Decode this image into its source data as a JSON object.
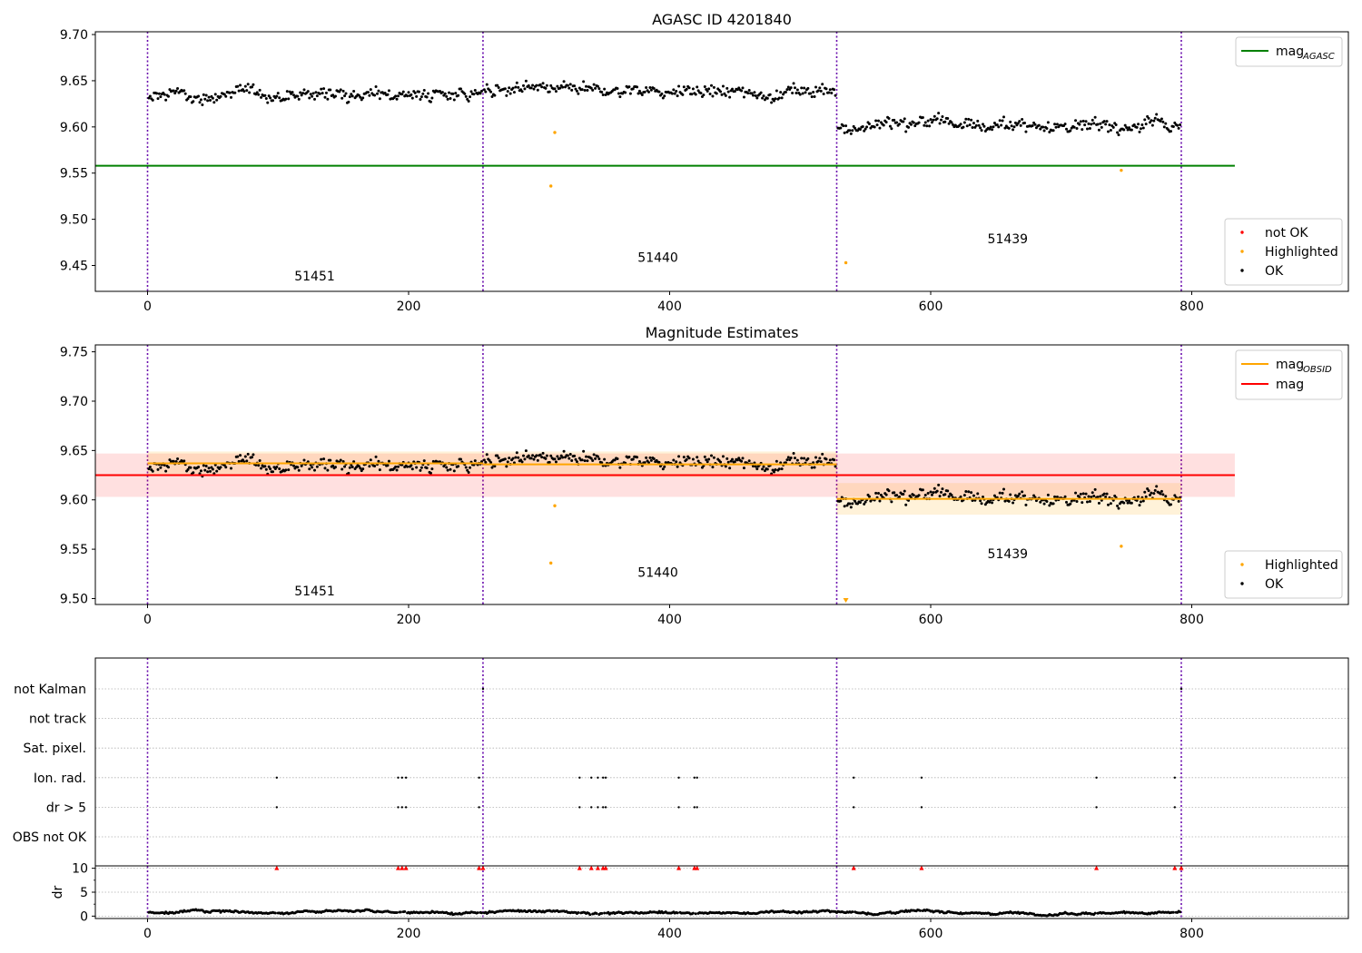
{
  "chart_data": [
    {
      "type": "scatter",
      "title": "AGASC ID 4201840",
      "xlabel": "",
      "ylabel": "",
      "xlim": [
        -40,
        920
      ],
      "ylim": [
        9.422,
        9.703
      ],
      "xticks": [
        0,
        200,
        400,
        600,
        800
      ],
      "yticks": [
        9.45,
        9.5,
        9.55,
        9.6,
        9.65,
        9.7
      ],
      "ytick_labels": [
        "9.45",
        "9.50",
        "9.55",
        "9.60",
        "9.65",
        "9.70"
      ],
      "obs_boundaries": [
        0,
        257,
        528,
        792
      ],
      "obs_labels": [
        {
          "text": "51451",
          "x": 128,
          "y": 9.434
        },
        {
          "text": "51440",
          "x": 391,
          "y": 9.454
        },
        {
          "text": "51439",
          "x": 659,
          "y": 9.474
        }
      ],
      "legend": {
        "position": "top-right",
        "entries": [
          {
            "label": "mag",
            "subscript": "AGASC",
            "color": "#008000"
          }
        ]
      },
      "legend2": {
        "position": "bottom-right",
        "entries": [
          {
            "label": "not OK",
            "color": "#ff0000"
          },
          {
            "label": "Highlighted",
            "color": "#ffa500"
          },
          {
            "label": "OK",
            "color": "#000000"
          }
        ]
      },
      "lines": [
        {
          "name": "mag_AGASC",
          "y": 9.558,
          "x": [
            -40,
            833
          ],
          "color": "#008000"
        }
      ],
      "series": [
        {
          "name": "OK",
          "color": "#000000",
          "segments": [
            {
              "x0": 0,
              "x1": 257,
              "base": 9.636,
              "amp": 0.013
            },
            {
              "x0": 257,
              "x1": 528,
              "base": 9.638,
              "amp": 0.013
            },
            {
              "x0": 528,
              "x1": 792,
              "base": 9.602,
              "amp": 0.013
            }
          ]
        },
        {
          "name": "Highlighted",
          "color": "#ffa500",
          "points": [
            [
              309,
              9.536
            ],
            [
              312,
              9.594
            ],
            [
              535,
              9.453
            ],
            [
              746,
              9.553
            ]
          ]
        }
      ]
    },
    {
      "type": "scatter",
      "title": "Magnitude Estimates",
      "xlabel": "",
      "ylabel": "",
      "xlim": [
        -40,
        920
      ],
      "ylim": [
        9.494,
        9.757
      ],
      "xticks": [
        0,
        200,
        400,
        600,
        800
      ],
      "yticks": [
        9.5,
        9.55,
        9.6,
        9.65,
        9.7,
        9.75
      ],
      "ytick_labels": [
        "9.50",
        "9.55",
        "9.60",
        "9.65",
        "9.70",
        "9.75"
      ],
      "obs_boundaries": [
        0,
        257,
        528,
        792
      ],
      "obs_labels": [
        {
          "text": "51451",
          "x": 128,
          "y": 9.503
        },
        {
          "text": "51440",
          "x": 391,
          "y": 9.522
        },
        {
          "text": "51439",
          "x": 659,
          "y": 9.541
        }
      ],
      "legend": {
        "position": "top-right",
        "entries": [
          {
            "label": "mag",
            "subscript": "OBSID",
            "color": "#ffa500"
          },
          {
            "label": "mag",
            "subscript": "",
            "color": "#ff0000"
          }
        ]
      },
      "legend2": {
        "position": "bottom-right",
        "entries": [
          {
            "label": "Highlighted",
            "color": "#ffa500"
          },
          {
            "label": "OK",
            "color": "#000000"
          }
        ]
      },
      "lines": [
        {
          "name": "mag",
          "y": 9.625,
          "x": [
            -40,
            833
          ],
          "band": [
            9.603,
            9.647
          ],
          "color": "#ff0000"
        },
        {
          "name": "mag_OBSID 51451",
          "y": 9.637,
          "x": [
            0,
            257
          ],
          "band": [
            9.626,
            9.649
          ],
          "color": "#ffa500"
        },
        {
          "name": "mag_OBSID 51440",
          "y": 9.636,
          "x": [
            257,
            528
          ],
          "band": [
            9.623,
            9.649
          ],
          "color": "#ffa500"
        },
        {
          "name": "mag_OBSID 51439",
          "y": 9.601,
          "x": [
            528,
            792
          ],
          "band": [
            9.585,
            9.617
          ],
          "color": "#ffa500"
        }
      ],
      "series": [
        {
          "name": "OK",
          "color": "#000000",
          "segments": [
            {
              "x0": 0,
              "x1": 257,
              "base": 9.636,
              "amp": 0.013
            },
            {
              "x0": 257,
              "x1": 528,
              "base": 9.638,
              "amp": 0.013
            },
            {
              "x0": 528,
              "x1": 792,
              "base": 9.602,
              "amp": 0.013
            }
          ]
        },
        {
          "name": "Highlighted",
          "color": "#ffa500",
          "points": [
            [
              309,
              9.536
            ],
            [
              312,
              9.594
            ],
            [
              746,
              9.553
            ]
          ]
        }
      ]
    },
    {
      "type": "scatter",
      "title": "",
      "xlabel": "",
      "ylabel": "dr",
      "xlim": [
        -40,
        920
      ],
      "xticks": [
        0,
        200,
        400,
        600,
        800
      ],
      "obs_boundaries": [
        0,
        257,
        528,
        792
      ],
      "flag_rows": [
        "not Kalman",
        "not track",
        "Sat. pixel.",
        "Ion. rad.",
        "dr > 5",
        "OBS not OK"
      ],
      "flag_points": {
        "not Kalman": [
          257,
          792
        ],
        "not track": [],
        "Sat. pixel.": [],
        "Ion. rad.": [
          99,
          192,
          195,
          198,
          254,
          331,
          340,
          345,
          349,
          351,
          407,
          419,
          421,
          541,
          593,
          727,
          787
        ],
        "dr > 5": [
          99,
          192,
          195,
          198,
          254,
          331,
          340,
          345,
          349,
          351,
          407,
          419,
          421,
          541,
          593,
          727,
          787
        ],
        "OBS not OK": []
      },
      "dr_ylim": [
        -0.5,
        10.5
      ],
      "dr_yticks": [
        0,
        5,
        10
      ],
      "dr_ytick_labels": [
        "0",
        "5",
        "10"
      ],
      "dr_clipped": [
        99,
        192,
        195,
        198,
        254,
        257,
        331,
        340,
        345,
        349,
        351,
        407,
        419,
        421,
        541,
        593,
        727,
        787,
        792
      ],
      "dr_clipped_color": "#ff0000",
      "dr_series": {
        "name": "dr",
        "color": "#000000",
        "base": 0.8,
        "amp": 0.5
      }
    }
  ]
}
